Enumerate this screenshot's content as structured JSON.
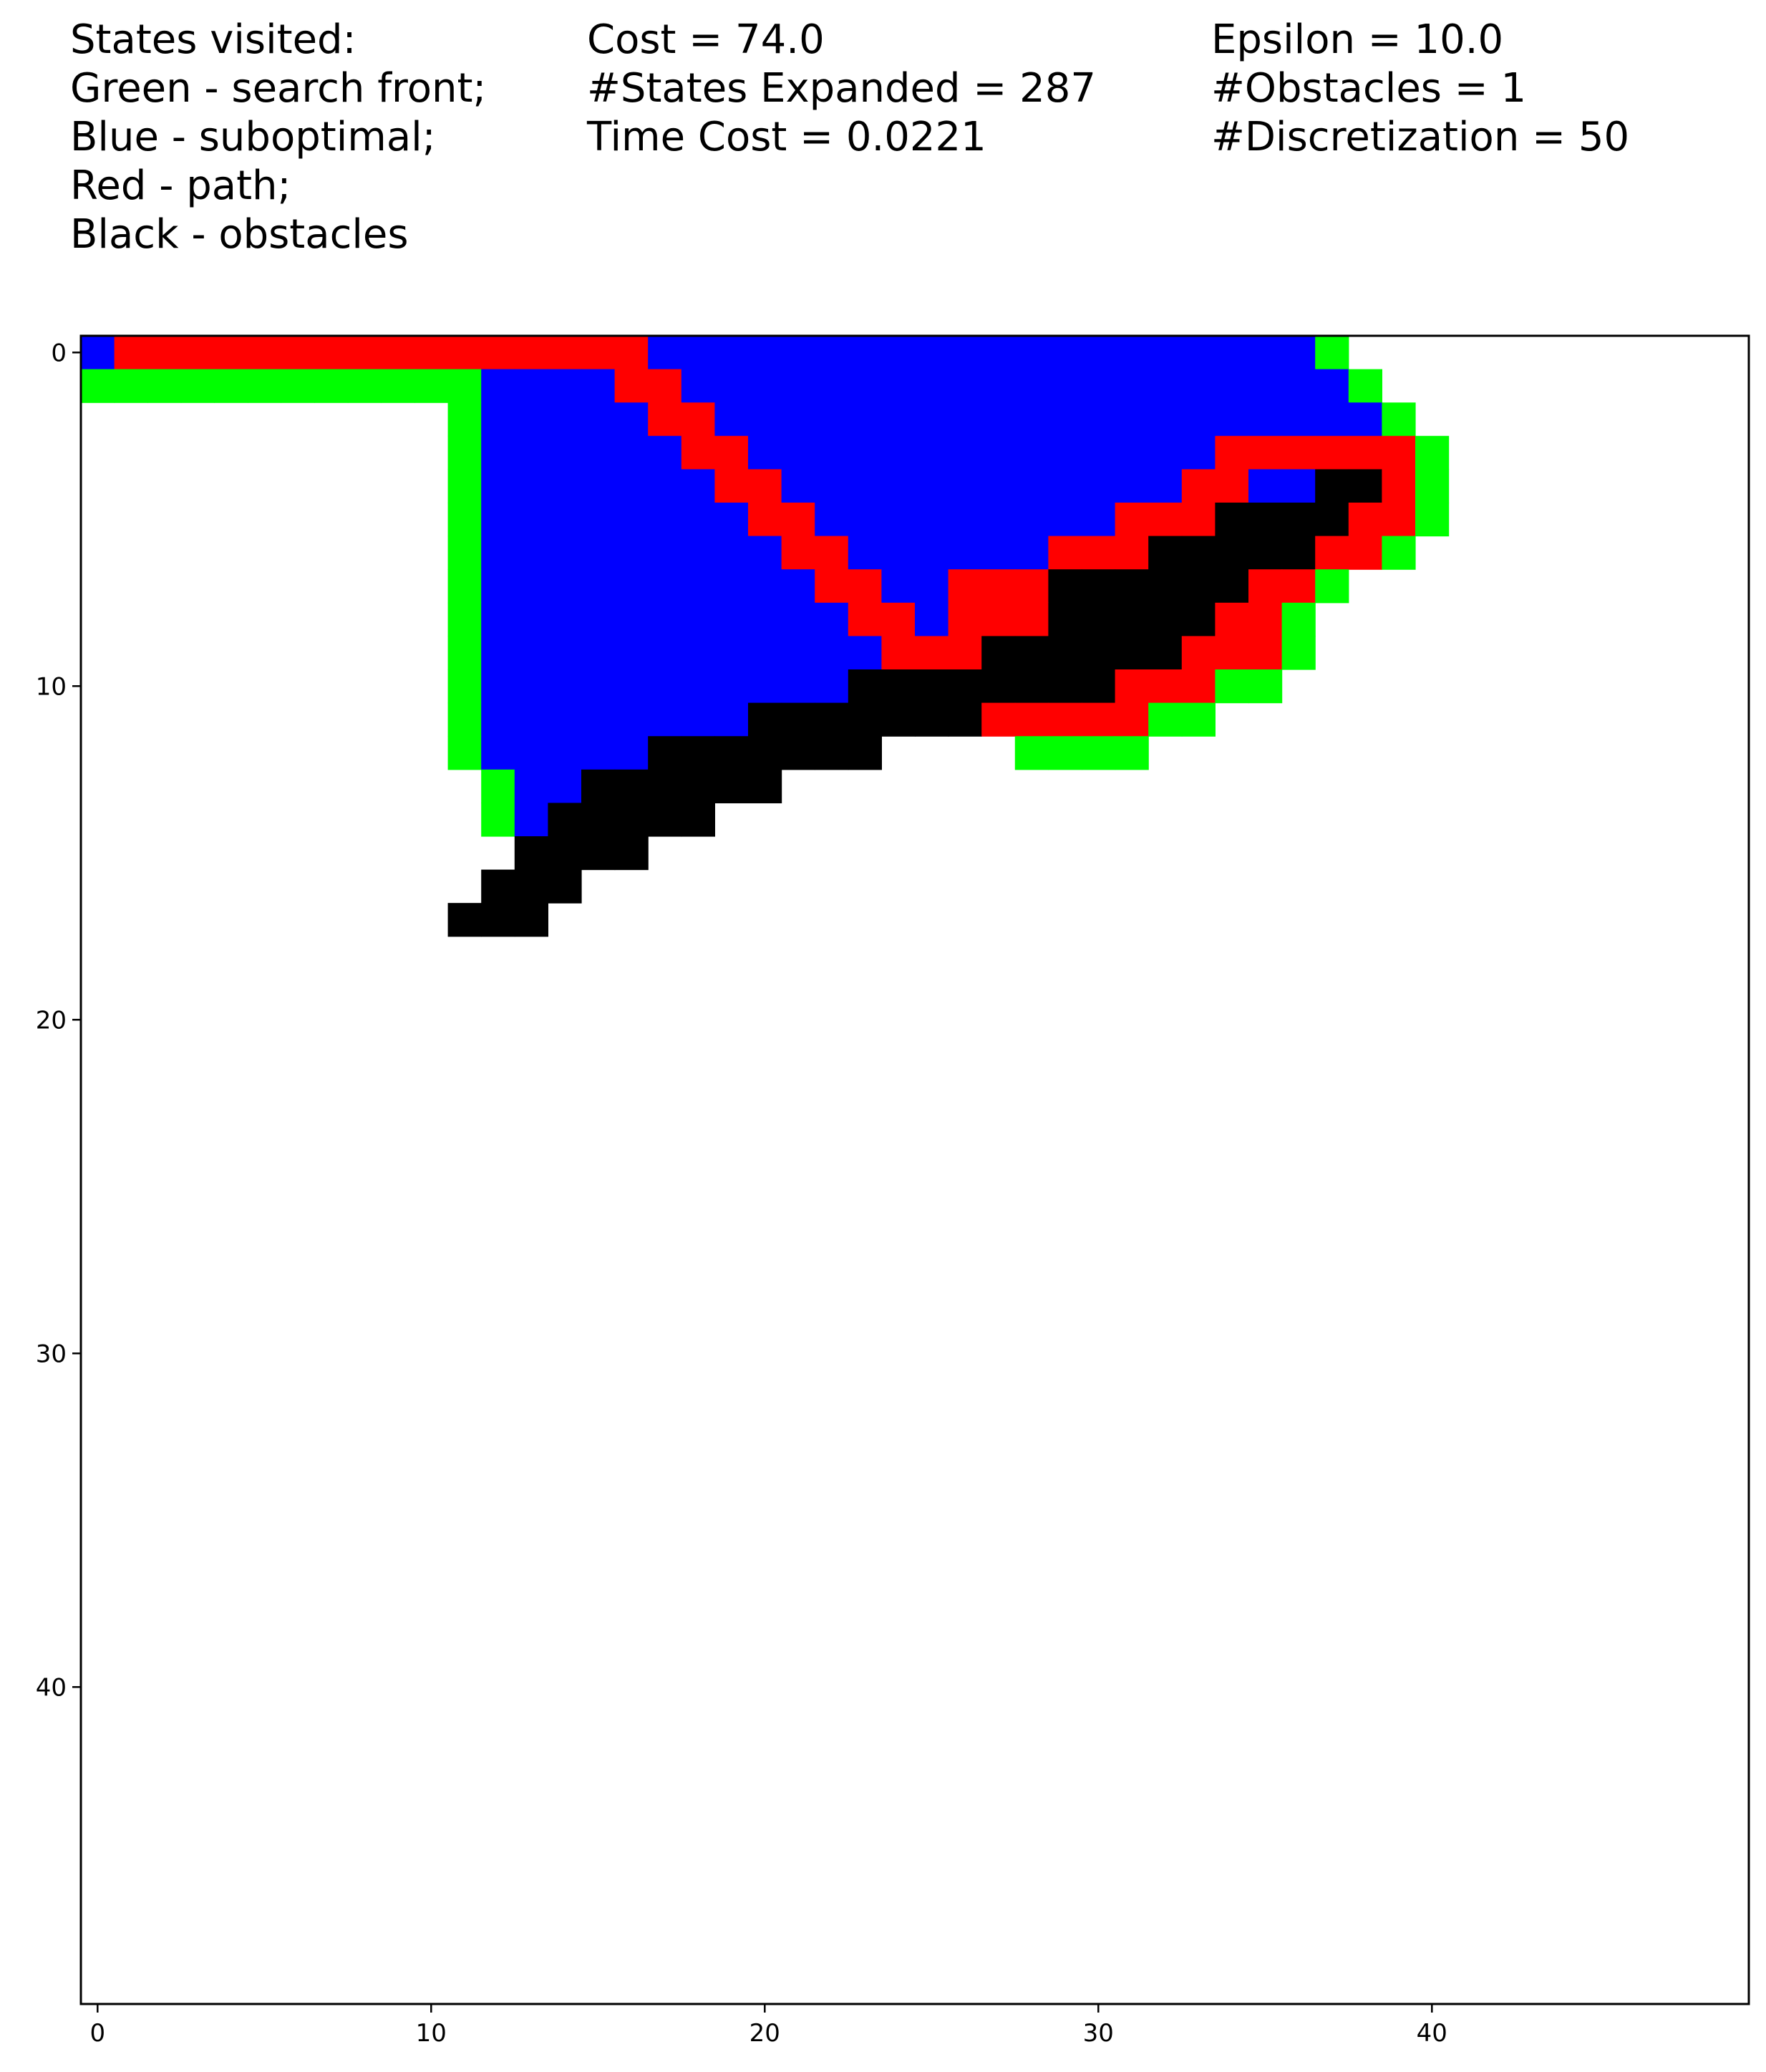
{
  "header": {
    "legend_lines": [
      "States visited:",
      "Green - search front;",
      "Blue - suboptimal;",
      "Red - path;",
      "Black - obstacles"
    ],
    "stats_lines": [
      "Cost = 74.0",
      "#States Expanded = 287",
      "Time Cost = 0.0221"
    ],
    "params_lines": [
      "Epsilon = 10.0",
      "#Obstacles = 1",
      "#Discretization = 50"
    ]
  },
  "colors": {
    "green": "#00ff00",
    "blue": "#0000ff",
    "red": "#ff0000",
    "black": "#000000",
    "empty": "#ffffff"
  },
  "chart_data": {
    "type": "heatmap",
    "grid_size": 50,
    "xlim": [
      -0.5,
      49.5
    ],
    "ylim": [
      49.5,
      -0.5
    ],
    "x_ticks": [
      0,
      10,
      20,
      30,
      40
    ],
    "y_ticks": [
      0,
      10,
      20,
      30,
      40
    ],
    "grid": false,
    "cell_codes": {
      "G": "search front",
      "B": "suboptimal",
      "R": "path",
      "K": "obstacle"
    },
    "rows": [
      {
        "y": 0,
        "runs": [
          [
            0,
            0,
            "B"
          ],
          [
            1,
            16,
            "R"
          ],
          [
            17,
            36,
            "B"
          ],
          [
            37,
            37,
            "G"
          ]
        ]
      },
      {
        "y": 1,
        "runs": [
          [
            0,
            11,
            "G"
          ],
          [
            12,
            15,
            "B"
          ],
          [
            16,
            17,
            "R"
          ],
          [
            18,
            37,
            "B"
          ],
          [
            38,
            38,
            "G"
          ]
        ]
      },
      {
        "y": 2,
        "runs": [
          [
            11,
            11,
            "G"
          ],
          [
            12,
            16,
            "B"
          ],
          [
            17,
            18,
            "R"
          ],
          [
            19,
            38,
            "B"
          ],
          [
            39,
            39,
            "G"
          ]
        ]
      },
      {
        "y": 3,
        "runs": [
          [
            11,
            11,
            "G"
          ],
          [
            12,
            17,
            "B"
          ],
          [
            18,
            19,
            "R"
          ],
          [
            20,
            33,
            "B"
          ],
          [
            34,
            39,
            "R"
          ],
          [
            40,
            40,
            "G"
          ]
        ]
      },
      {
        "y": 4,
        "runs": [
          [
            11,
            11,
            "G"
          ],
          [
            12,
            18,
            "B"
          ],
          [
            19,
            20,
            "R"
          ],
          [
            21,
            32,
            "B"
          ],
          [
            33,
            34,
            "R"
          ],
          [
            35,
            36,
            "B"
          ],
          [
            37,
            38,
            "K"
          ],
          [
            39,
            39,
            "R"
          ],
          [
            40,
            40,
            "G"
          ]
        ]
      },
      {
        "y": 5,
        "runs": [
          [
            11,
            11,
            "G"
          ],
          [
            12,
            19,
            "B"
          ],
          [
            20,
            21,
            "R"
          ],
          [
            22,
            30,
            "B"
          ],
          [
            31,
            33,
            "R"
          ],
          [
            34,
            37,
            "K"
          ],
          [
            38,
            39,
            "R"
          ],
          [
            40,
            40,
            "G"
          ]
        ]
      },
      {
        "y": 6,
        "runs": [
          [
            11,
            11,
            "G"
          ],
          [
            12,
            20,
            "B"
          ],
          [
            21,
            22,
            "R"
          ],
          [
            23,
            28,
            "B"
          ],
          [
            29,
            31,
            "R"
          ],
          [
            32,
            36,
            "K"
          ],
          [
            37,
            38,
            "R"
          ],
          [
            39,
            39,
            "G"
          ]
        ]
      },
      {
        "y": 7,
        "runs": [
          [
            11,
            11,
            "G"
          ],
          [
            12,
            21,
            "B"
          ],
          [
            22,
            23,
            "R"
          ],
          [
            24,
            25,
            "B"
          ],
          [
            26,
            28,
            "R"
          ],
          [
            29,
            34,
            "K"
          ],
          [
            35,
            36,
            "R"
          ],
          [
            37,
            37,
            "G"
          ]
        ]
      },
      {
        "y": 8,
        "runs": [
          [
            11,
            11,
            "G"
          ],
          [
            12,
            22,
            "B"
          ],
          [
            23,
            24,
            "R"
          ],
          [
            25,
            25,
            "B"
          ],
          [
            26,
            28,
            "R"
          ],
          [
            29,
            33,
            "K"
          ],
          [
            34,
            35,
            "R"
          ],
          [
            36,
            36,
            "G"
          ]
        ]
      },
      {
        "y": 9,
        "runs": [
          [
            11,
            11,
            "G"
          ],
          [
            12,
            23,
            "B"
          ],
          [
            24,
            26,
            "R"
          ],
          [
            27,
            32,
            "K"
          ],
          [
            33,
            35,
            "R"
          ],
          [
            36,
            36,
            "G"
          ]
        ]
      },
      {
        "y": 10,
        "runs": [
          [
            11,
            11,
            "G"
          ],
          [
            12,
            22,
            "B"
          ],
          [
            23,
            30,
            "K"
          ],
          [
            31,
            33,
            "R"
          ],
          [
            34,
            35,
            "G"
          ]
        ]
      },
      {
        "y": 11,
        "runs": [
          [
            11,
            11,
            "G"
          ],
          [
            12,
            19,
            "B"
          ],
          [
            20,
            26,
            "K"
          ],
          [
            27,
            31,
            "R"
          ],
          [
            32,
            33,
            "G"
          ]
        ]
      },
      {
        "y": 12,
        "runs": [
          [
            11,
            11,
            "G"
          ],
          [
            12,
            16,
            "B"
          ],
          [
            17,
            23,
            "K"
          ],
          [
            28,
            31,
            "G"
          ]
        ]
      },
      {
        "y": 13,
        "runs": [
          [
            12,
            12,
            "G"
          ],
          [
            13,
            14,
            "B"
          ],
          [
            15,
            20,
            "K"
          ]
        ]
      },
      {
        "y": 14,
        "runs": [
          [
            12,
            12,
            "G"
          ],
          [
            13,
            13,
            "B"
          ],
          [
            14,
            18,
            "K"
          ]
        ]
      },
      {
        "y": 15,
        "runs": [
          [
            13,
            16,
            "K"
          ]
        ]
      },
      {
        "y": 16,
        "runs": [
          [
            12,
            14,
            "K"
          ]
        ]
      },
      {
        "y": 17,
        "runs": [
          [
            11,
            13,
            "K"
          ]
        ]
      }
    ]
  }
}
